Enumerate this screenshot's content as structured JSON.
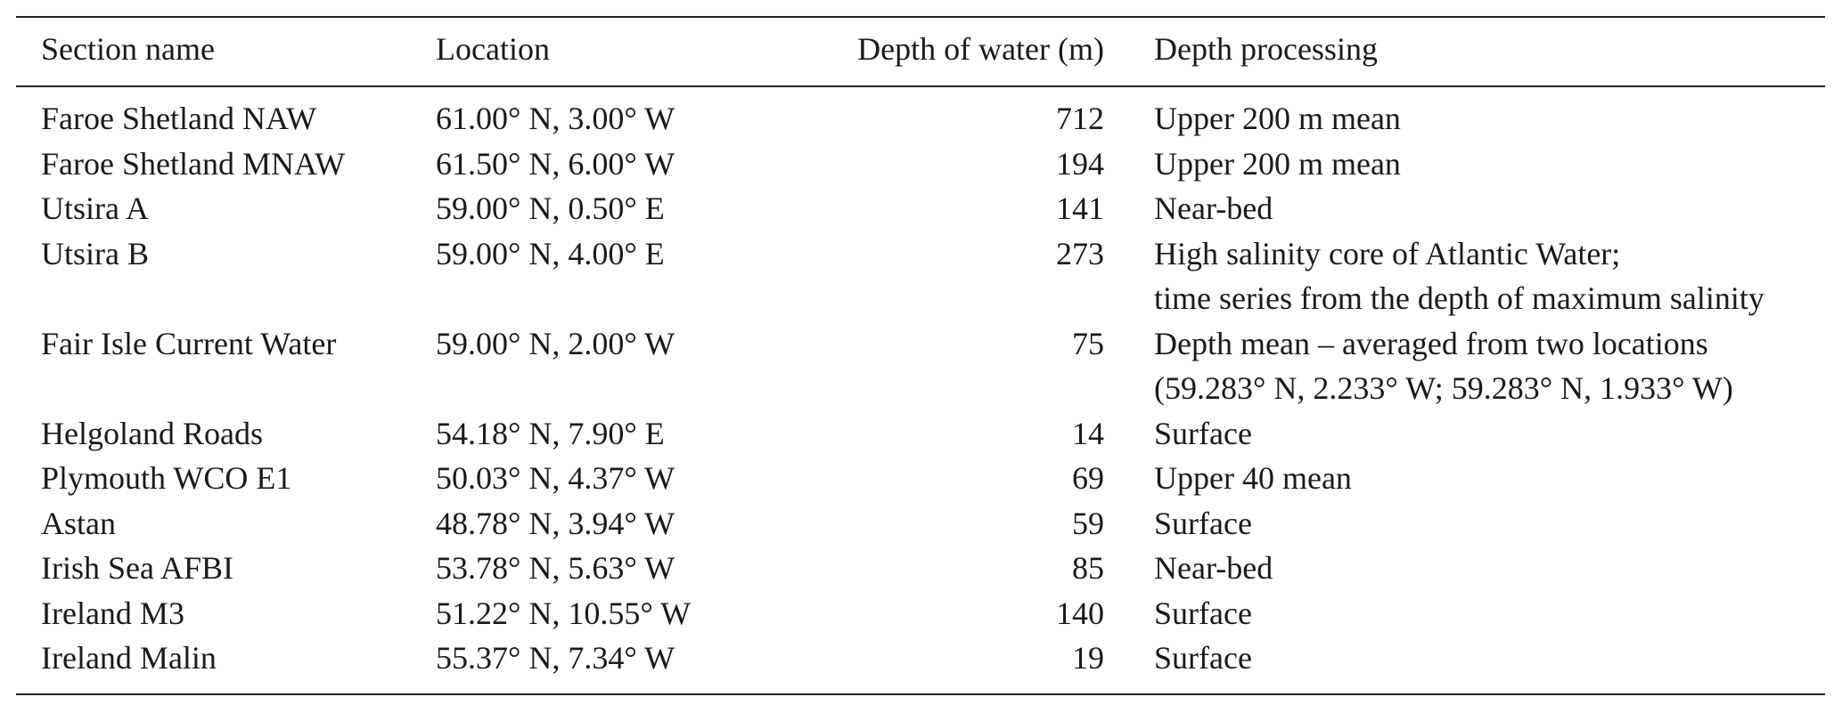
{
  "table": {
    "header": [
      "Section name",
      "Location",
      "Depth of water (m)",
      "Depth processing"
    ],
    "rows": [
      [
        "Faroe Shetland NAW",
        "61.00° N, 3.00° W",
        712,
        "Upper 200 m mean"
      ],
      [
        "Faroe Shetland MNAW",
        "61.50° N, 6.00° W",
        194,
        "Upper 200 m mean"
      ],
      [
        "Utsira A",
        "59.00° N, 0.50° E",
        141,
        "Near-bed"
      ],
      [
        "Utsira B",
        "59.00° N, 4.00° E",
        273,
        [
          "High salinity core of Atlantic Water;",
          "time series from the depth of maximum salinity"
        ]
      ],
      [
        "Fair Isle Current Water",
        "59.00° N, 2.00° W",
        75,
        [
          "Depth mean – averaged from two locations",
          "(59.283° N, 2.233° W; 59.283° N, 1.933° W)"
        ]
      ],
      [
        "Helgoland Roads",
        "54.18° N, 7.90° E",
        14,
        "Surface"
      ],
      [
        "Plymouth WCO E1",
        "50.03° N, 4.37° W",
        69,
        "Upper 40 mean"
      ],
      [
        "Astan",
        "48.78° N, 3.94° W",
        59,
        "Surface"
      ],
      [
        "Irish Sea AFBI",
        "53.78° N, 5.63° W",
        85,
        "Near-bed"
      ],
      [
        "Ireland M3",
        "51.22° N, 10.55° W",
        140,
        "Surface"
      ],
      [
        "Ireland Malin",
        "55.37° N, 7.34° W",
        19,
        "Surface"
      ]
    ]
  }
}
